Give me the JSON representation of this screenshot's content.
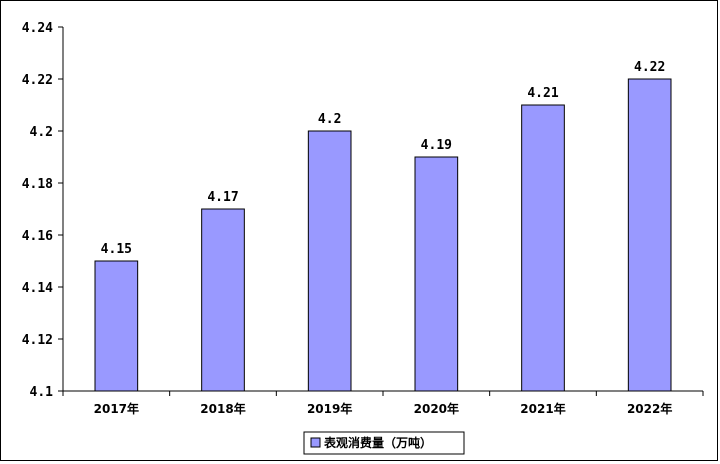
{
  "chart_data": {
    "type": "bar",
    "categories": [
      "2017年",
      "2018年",
      "2019年",
      "2020年",
      "2021年",
      "2022年"
    ],
    "series": [
      {
        "name": "表观消费量（万吨）",
        "values": [
          4.15,
          4.17,
          4.2,
          4.19,
          4.21,
          4.22
        ]
      }
    ],
    "data_labels": [
      "4.15",
      "4.17",
      "4.2",
      "4.19",
      "4.21",
      "4.22"
    ],
    "y_ticks": [
      4.1,
      4.12,
      4.14,
      4.16,
      4.18,
      4.2,
      4.22,
      4.24
    ],
    "y_tick_labels": [
      "4.1",
      "4.12",
      "4.14",
      "4.16",
      "4.18",
      "4.2",
      "4.22",
      "4.24"
    ],
    "ylim": [
      4.1,
      4.24
    ],
    "title": "",
    "xlabel": "",
    "ylabel": "",
    "grid": false,
    "legend_position": "bottom",
    "colors": {
      "bar_fill": "#9999ff",
      "bar_stroke": "#000000",
      "axis": "#000000"
    }
  }
}
